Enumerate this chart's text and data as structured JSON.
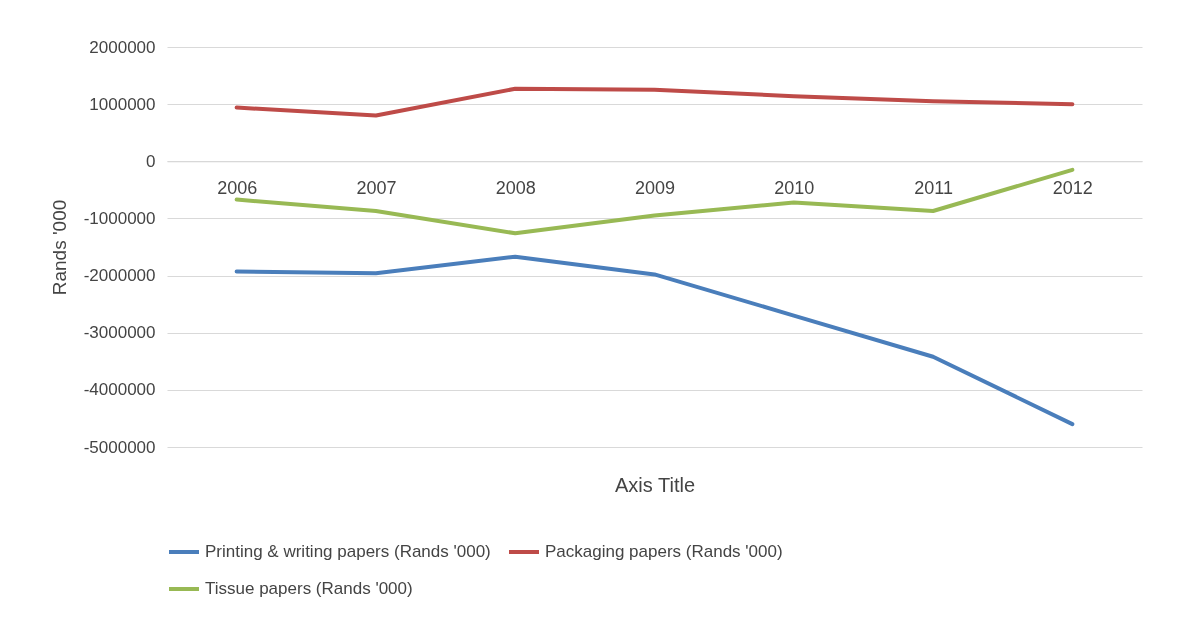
{
  "chart_data": {
    "type": "line",
    "xlabel": "Axis Title",
    "ylabel": "Rands '000",
    "categories": [
      "2006",
      "2007",
      "2008",
      "2009",
      "2010",
      "2011",
      "2012"
    ],
    "series": [
      {
        "name": "Printing & writing papers (Rands '000)",
        "color": "#4a7ebb",
        "values": [
          -1930000,
          -1960000,
          -1670000,
          -1980000,
          -2700000,
          -3420000,
          -4600000
        ]
      },
      {
        "name": "Packaging papers (Rands '000)",
        "color": "#be4b48",
        "values": [
          940000,
          800000,
          1270000,
          1250000,
          1140000,
          1050000,
          1000000
        ]
      },
      {
        "name": "Tissue papers (Rands '000)",
        "color": "#98b954",
        "values": [
          -670000,
          -870000,
          -1260000,
          -950000,
          -720000,
          -870000,
          -150000
        ]
      }
    ],
    "ylim": [
      -5000000,
      2000000
    ],
    "yticks": [
      -5000000,
      -4000000,
      -3000000,
      -2000000,
      -1000000,
      0,
      1000000,
      2000000
    ],
    "grid": "y",
    "legend": "bottom",
    "marker": "none",
    "line_style": "solid"
  }
}
